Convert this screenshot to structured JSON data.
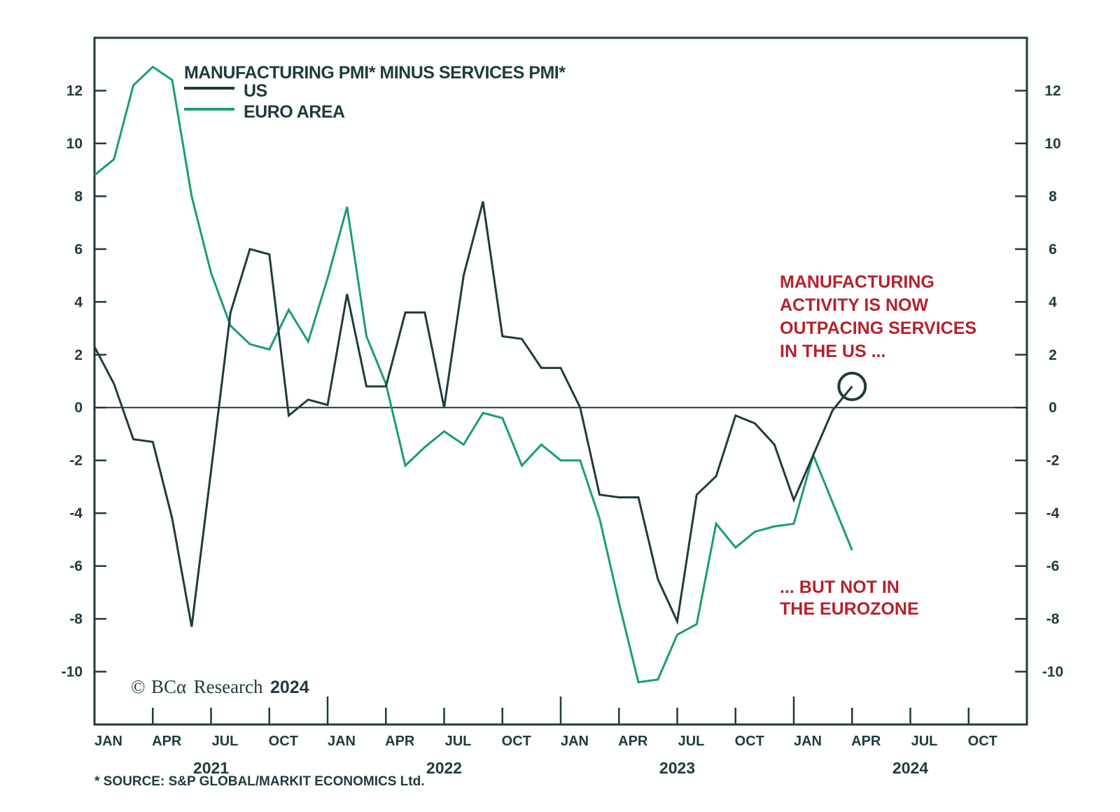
{
  "chart_data": {
    "type": "line",
    "title": "MANUFACTURING PMI* MINUS SERVICES PMI*",
    "xlabel": "",
    "ylabel": "",
    "ylim": [
      -12,
      14
    ],
    "y_ticks": [
      -10,
      -8,
      -6,
      -4,
      -2,
      0,
      2,
      4,
      6,
      8,
      10,
      12
    ],
    "y_tick_labels": [
      "-10",
      "-8",
      "-6",
      "-4",
      "-2",
      "0",
      "2",
      "4",
      "6",
      "8",
      "10",
      "12"
    ],
    "dual_y_axis": true,
    "x_start": "2021-01",
    "x_span_months": 48,
    "x_month_ticks": [
      "JAN",
      "APR",
      "JUL",
      "OCT",
      "JAN",
      "APR",
      "JUL",
      "OCT",
      "JAN",
      "APR",
      "JUL",
      "OCT",
      "JAN",
      "APR",
      "JUL",
      "OCT"
    ],
    "x_year_labels": [
      "2021",
      "2022",
      "2023",
      "2024"
    ],
    "zero_line": true,
    "grid": false,
    "legend_position": "top-left",
    "x": [
      "2021-01",
      "2021-02",
      "2021-03",
      "2021-04",
      "2021-05",
      "2021-06",
      "2021-07",
      "2021-08",
      "2021-09",
      "2021-10",
      "2021-11",
      "2021-12",
      "2022-01",
      "2022-02",
      "2022-03",
      "2022-04",
      "2022-05",
      "2022-06",
      "2022-07",
      "2022-08",
      "2022-09",
      "2022-10",
      "2022-11",
      "2022-12",
      "2023-01",
      "2023-02",
      "2023-03",
      "2023-04",
      "2023-05",
      "2023-06",
      "2023-07",
      "2023-08",
      "2023-09",
      "2023-10",
      "2023-11",
      "2023-12",
      "2024-01",
      "2024-02",
      "2024-03",
      "2024-04"
    ],
    "series": [
      {
        "name": "US",
        "color": "#1f3b3f",
        "values": [
          2.3,
          0.9,
          -1.2,
          -1.3,
          -4.2,
          -8.3,
          -2.4,
          3.6,
          6.0,
          5.8,
          -0.3,
          0.3,
          0.1,
          4.3,
          0.8,
          0.8,
          3.6,
          3.6,
          0.0,
          5.0,
          7.8,
          2.7,
          2.6,
          1.5,
          1.5,
          0.0,
          -3.3,
          -3.4,
          -3.4,
          -6.5,
          -8.1,
          -3.3,
          -2.6,
          -0.3,
          -0.6,
          -1.4,
          -3.5,
          -1.8,
          -0.1,
          0.8
        ]
      },
      {
        "name": "EURO AREA",
        "color": "#1a9c77",
        "values": [
          8.8,
          9.4,
          12.2,
          12.9,
          12.4,
          8.0,
          5.1,
          3.1,
          2.4,
          2.2,
          3.7,
          2.5,
          4.9,
          7.6,
          2.7,
          0.9,
          -2.2,
          -1.5,
          -0.9,
          -1.4,
          -0.2,
          -0.4,
          -2.2,
          -1.4,
          -2.0,
          -2.0,
          -4.2,
          -7.4,
          -10.4,
          -10.3,
          -8.6,
          -8.2,
          -4.4,
          -5.3,
          -4.7,
          -4.5,
          -4.4,
          -1.8,
          -3.6,
          -5.4
        ]
      }
    ],
    "highlight": {
      "series": "US",
      "x": "2024-04",
      "y": 0.8,
      "shape": "circle"
    },
    "annotations": [
      {
        "lines": [
          "MANUFACTURING",
          "ACTIVITY IS NOW",
          "OUTPACING SERVICES",
          "IN THE US ..."
        ],
        "color": "#b5222c"
      },
      {
        "lines": [
          "... BUT NOT IN",
          "THE EUROZONE"
        ],
        "color": "#b5222c"
      }
    ]
  },
  "legend": {
    "title": "MANUFACTURING PMI* MINUS SERVICES PMI*",
    "items": [
      {
        "label": "US",
        "color": "#1f3b3f"
      },
      {
        "label": "EURO AREA",
        "color": "#1a9c77"
      }
    ]
  },
  "branding": {
    "copyright_symbol": "©",
    "brand": "BCα",
    "brand_suffix": "Research",
    "year": "2024"
  },
  "footer": {
    "source": "* SOURCE: S&P GLOBAL/MARKIT ECONOMICS Ltd."
  },
  "colors": {
    "axis": "#1f3b3f",
    "annotation": "#b5222c"
  }
}
